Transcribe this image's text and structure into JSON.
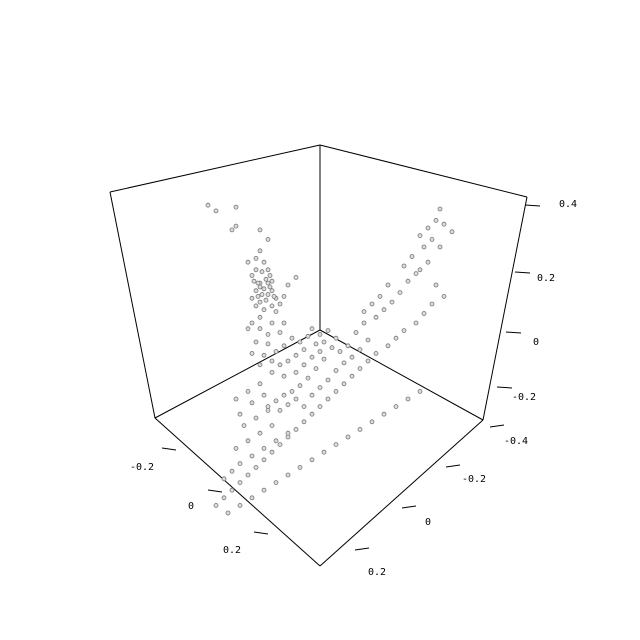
{
  "chart_data": {
    "type": "scatter",
    "title": "",
    "xlabel": "",
    "ylabel": "",
    "zlabel": "",
    "grid": false,
    "colors": {
      "point_fill": "#dcdcdc",
      "point_stroke": "#777777",
      "box": "#000000"
    },
    "axes": {
      "left": {
        "ticks": [
          {
            "value": -0.2,
            "label": "-0.2"
          },
          {
            "value": 0,
            "label": "0"
          },
          {
            "value": 0.2,
            "label": "0.2"
          }
        ]
      },
      "right": {
        "ticks": [
          {
            "value": -0.4,
            "label": "-0.4"
          },
          {
            "value": -0.2,
            "label": "-0.2"
          },
          {
            "value": 0,
            "label": "0"
          },
          {
            "value": 0.2,
            "label": "0.2"
          }
        ]
      },
      "vertical": {
        "ticks": [
          {
            "value": -0.2,
            "label": "-0.2"
          },
          {
            "value": 0,
            "label": "0"
          },
          {
            "value": 0.2,
            "label": "0.2"
          },
          {
            "value": 0.4,
            "label": "0.4"
          }
        ]
      }
    },
    "points_projected": [
      [
        0.14,
        0.92
      ],
      [
        0.18,
        0.89
      ],
      [
        0.28,
        0.91
      ],
      [
        0.26,
        0.79
      ],
      [
        0.28,
        0.81
      ],
      [
        0.4,
        0.79
      ],
      [
        0.44,
        0.74
      ],
      [
        0.4,
        0.68
      ],
      [
        0.38,
        0.64
      ],
      [
        0.42,
        0.62
      ],
      [
        0.38,
        0.58
      ],
      [
        0.44,
        0.58
      ],
      [
        0.34,
        0.62
      ],
      [
        0.46,
        0.52
      ],
      [
        0.36,
        0.55
      ],
      [
        0.4,
        0.51
      ],
      [
        0.42,
        0.48
      ],
      [
        0.38,
        0.47
      ],
      [
        0.44,
        0.45
      ],
      [
        0.36,
        0.43
      ],
      [
        0.48,
        0.43
      ],
      [
        0.4,
        0.41
      ],
      [
        0.38,
        0.39
      ],
      [
        0.42,
        0.37
      ],
      [
        0.46,
        0.39
      ],
      [
        0.5,
        0.4
      ],
      [
        0.54,
        0.5
      ],
      [
        0.58,
        0.54
      ],
      [
        0.52,
        0.44
      ],
      [
        0.44,
        0.51
      ],
      [
        0.4,
        0.49
      ],
      [
        0.46,
        0.47
      ],
      [
        0.41,
        0.45
      ],
      [
        0.39,
        0.51
      ],
      [
        0.43,
        0.53
      ],
      [
        0.45,
        0.55
      ],
      [
        0.41,
        0.57
      ],
      [
        0.37,
        0.52
      ],
      [
        0.39,
        0.44
      ],
      [
        0.43,
        0.42
      ],
      [
        0.47,
        0.44
      ],
      [
        0.45,
        0.49
      ],
      [
        0.48,
        0.36
      ],
      [
        0.52,
        0.3
      ],
      [
        0.46,
        0.3
      ],
      [
        0.4,
        0.33
      ],
      [
        0.36,
        0.3
      ],
      [
        0.34,
        0.27
      ],
      [
        0.4,
        0.27
      ],
      [
        0.44,
        0.24
      ],
      [
        0.5,
        0.25
      ],
      [
        0.56,
        0.22
      ],
      [
        0.6,
        0.2
      ],
      [
        0.64,
        0.23
      ],
      [
        0.66,
        0.27
      ],
      [
        0.7,
        0.24
      ],
      [
        0.68,
        0.19
      ],
      [
        0.62,
        0.16
      ],
      [
        0.58,
        0.13
      ],
      [
        0.54,
        0.1
      ],
      [
        0.5,
        0.08
      ],
      [
        0.46,
        0.1
      ],
      [
        0.42,
        0.13
      ],
      [
        0.48,
        0.15
      ],
      [
        0.52,
        0.18
      ],
      [
        0.44,
        0.19
      ],
      [
        0.38,
        0.2
      ],
      [
        0.36,
        0.14
      ],
      [
        0.4,
        0.08
      ],
      [
        0.46,
        0.04
      ],
      [
        0.52,
        0.02
      ],
      [
        0.58,
        0.04
      ],
      [
        0.62,
        0.08
      ],
      [
        0.66,
        0.12
      ],
      [
        0.7,
        0.15
      ],
      [
        0.72,
        0.2
      ],
      [
        0.74,
        0.26
      ],
      [
        0.78,
        0.22
      ],
      [
        0.76,
        0.17
      ],
      [
        0.72,
        0.11
      ],
      [
        0.68,
        0.06
      ],
      [
        0.64,
        0.01
      ],
      [
        0.6,
        -0.03
      ],
      [
        0.56,
        -0.06
      ],
      [
        0.52,
        -0.08
      ],
      [
        0.48,
        -0.11
      ],
      [
        0.44,
        -0.14
      ],
      [
        0.5,
        -0.16
      ],
      [
        0.54,
        -0.13
      ],
      [
        0.58,
        -0.1
      ],
      [
        0.62,
        -0.14
      ],
      [
        0.66,
        -0.08
      ],
      [
        0.7,
        -0.04
      ],
      [
        0.74,
        0.0
      ],
      [
        0.78,
        0.05
      ],
      [
        0.82,
        0.09
      ],
      [
        0.86,
        0.12
      ],
      [
        0.84,
        0.18
      ],
      [
        0.8,
        0.15
      ],
      [
        0.9,
        0.16
      ],
      [
        0.94,
        0.21
      ],
      [
        0.88,
        0.25
      ],
      [
        0.92,
        0.3
      ],
      [
        0.98,
        0.33
      ],
      [
        1.02,
        0.37
      ],
      [
        1.06,
        0.41
      ],
      [
        1.1,
        0.46
      ],
      [
        1.04,
        0.5
      ],
      [
        1.0,
        0.44
      ],
      [
        0.96,
        0.4
      ],
      [
        0.92,
        0.36
      ],
      [
        1.14,
        0.52
      ],
      [
        1.18,
        0.56
      ],
      [
        1.12,
        0.6
      ],
      [
        1.16,
        0.65
      ],
      [
        1.2,
        0.58
      ],
      [
        1.24,
        0.62
      ],
      [
        1.22,
        0.7
      ],
      [
        1.26,
        0.74
      ],
      [
        1.2,
        0.76
      ],
      [
        1.24,
        0.8
      ],
      [
        1.28,
        0.84
      ],
      [
        1.3,
        0.9
      ],
      [
        1.32,
        0.82
      ],
      [
        1.36,
        0.78
      ],
      [
        1.3,
        0.7
      ],
      [
        1.28,
        0.5
      ],
      [
        1.32,
        0.44
      ],
      [
        1.26,
        0.4
      ],
      [
        1.22,
        0.35
      ],
      [
        1.18,
        0.3
      ],
      [
        1.12,
        0.26
      ],
      [
        1.08,
        0.22
      ],
      [
        1.04,
        0.18
      ],
      [
        0.98,
        0.14
      ],
      [
        0.94,
        0.1
      ],
      [
        0.9,
        0.06
      ],
      [
        0.86,
        0.02
      ],
      [
        0.82,
        -0.02
      ],
      [
        0.78,
        -0.06
      ],
      [
        0.74,
        -0.1
      ],
      [
        0.7,
        -0.14
      ],
      [
        0.66,
        -0.18
      ],
      [
        0.62,
        -0.22
      ],
      [
        0.58,
        -0.26
      ],
      [
        0.54,
        -0.3
      ],
      [
        0.5,
        -0.34
      ],
      [
        0.46,
        -0.38
      ],
      [
        0.42,
        -0.42
      ],
      [
        0.38,
        -0.46
      ],
      [
        0.34,
        -0.5
      ],
      [
        0.3,
        -0.54
      ],
      [
        0.26,
        -0.58
      ],
      [
        0.22,
        -0.62
      ],
      [
        0.18,
        -0.66
      ],
      [
        0.24,
        -0.7
      ],
      [
        0.3,
        -0.66
      ],
      [
        0.36,
        -0.62
      ],
      [
        0.42,
        -0.58
      ],
      [
        0.48,
        -0.54
      ],
      [
        0.54,
        -0.5
      ],
      [
        0.6,
        -0.46
      ],
      [
        0.66,
        -0.42
      ],
      [
        0.72,
        -0.38
      ],
      [
        0.78,
        -0.34
      ],
      [
        0.84,
        -0.3
      ],
      [
        0.9,
        -0.26
      ],
      [
        0.96,
        -0.22
      ],
      [
        1.02,
        -0.18
      ],
      [
        1.08,
        -0.14
      ],
      [
        1.14,
        -0.1
      ],
      [
        1.2,
        -0.06
      ],
      [
        0.3,
        -0.44
      ],
      [
        0.36,
        -0.4
      ],
      [
        0.42,
        -0.36
      ],
      [
        0.48,
        -0.32
      ],
      [
        0.54,
        -0.28
      ],
      [
        0.26,
        -0.48
      ],
      [
        0.22,
        -0.52
      ],
      [
        0.28,
        -0.36
      ],
      [
        0.34,
        -0.32
      ],
      [
        0.4,
        -0.28
      ],
      [
        0.46,
        -0.24
      ],
      [
        0.32,
        -0.24
      ],
      [
        0.38,
        -0.2
      ],
      [
        0.44,
        -0.16
      ],
      [
        0.3,
        -0.18
      ],
      [
        0.36,
        -0.12
      ],
      [
        0.42,
        -0.08
      ],
      [
        0.28,
        -0.1
      ],
      [
        0.34,
        -0.06
      ],
      [
        0.4,
        -0.02
      ]
    ]
  }
}
